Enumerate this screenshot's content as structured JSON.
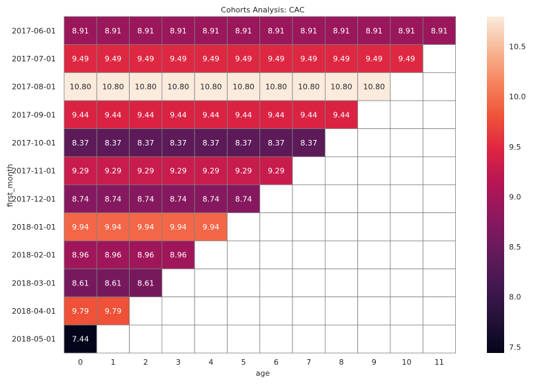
{
  "chart_data": {
    "type": "heatmap",
    "title": "Cohorts Analysis: CAC",
    "xlabel": "age",
    "ylabel": "first_month",
    "x_categories": [
      "0",
      "1",
      "2",
      "3",
      "4",
      "5",
      "6",
      "7",
      "8",
      "9",
      "10",
      "11"
    ],
    "y_categories": [
      "2017-06-01",
      "2017-07-01",
      "2017-08-01",
      "2017-09-01",
      "2017-10-01",
      "2017-11-01",
      "2017-12-01",
      "2018-01-01",
      "2018-02-01",
      "2018-03-01",
      "2018-04-01",
      "2018-05-01"
    ],
    "rows": [
      [
        "8.91",
        "8.91",
        "8.91",
        "8.91",
        "8.91",
        "8.91",
        "8.91",
        "8.91",
        "8.91",
        "8.91",
        "8.91",
        "8.91"
      ],
      [
        "9.49",
        "9.49",
        "9.49",
        "9.49",
        "9.49",
        "9.49",
        "9.49",
        "9.49",
        "9.49",
        "9.49",
        "9.49"
      ],
      [
        "10.80",
        "10.80",
        "10.80",
        "10.80",
        "10.80",
        "10.80",
        "10.80",
        "10.80",
        "10.80",
        "10.80"
      ],
      [
        "9.44",
        "9.44",
        "9.44",
        "9.44",
        "9.44",
        "9.44",
        "9.44",
        "9.44",
        "9.44"
      ],
      [
        "8.37",
        "8.37",
        "8.37",
        "8.37",
        "8.37",
        "8.37",
        "8.37",
        "8.37"
      ],
      [
        "9.29",
        "9.29",
        "9.29",
        "9.29",
        "9.29",
        "9.29",
        "9.29"
      ],
      [
        "8.74",
        "8.74",
        "8.74",
        "8.74",
        "8.74",
        "8.74"
      ],
      [
        "9.94",
        "9.94",
        "9.94",
        "9.94",
        "9.94"
      ],
      [
        "8.96",
        "8.96",
        "8.96",
        "8.96"
      ],
      [
        "8.61",
        "8.61",
        "8.61"
      ],
      [
        "9.79",
        "9.79"
      ],
      [
        "7.44"
      ]
    ],
    "colorbar": {
      "min": 7.44,
      "max": 10.8,
      "ticks": [
        "7.5",
        "8.0",
        "8.5",
        "9.0",
        "9.5",
        "10.0",
        "10.5"
      ],
      "colormap": "rocket"
    },
    "grid_line_color": "#808080"
  }
}
